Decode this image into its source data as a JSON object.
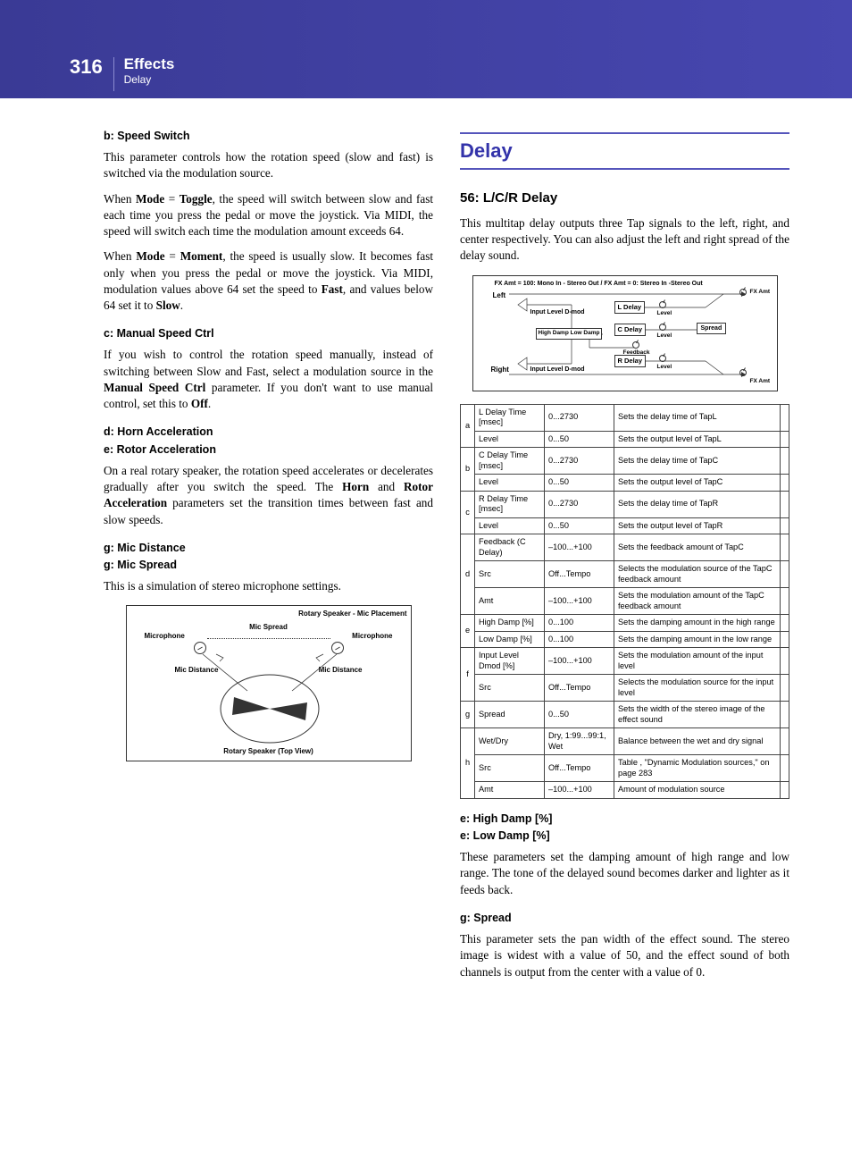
{
  "header": {
    "page_number": "316",
    "title": "Effects",
    "subtitle": "Delay"
  },
  "left_column": {
    "h_b": "b: Speed Switch",
    "p_b1": "This parameter controls how the rotation speed (slow and fast) is switched via the modulation source.",
    "p_b2_pre": "When ",
    "p_b2_mode": "Mode",
    "p_b2_eq": " = ",
    "p_b2_val": "Toggle",
    "p_b2_post": ", the speed will switch between slow and fast each time you press the pedal or move the joystick. Via MIDI, the speed will switch each time the modulation amount exceeds 64.",
    "p_b3_pre": "When ",
    "p_b3_mode": "Mode",
    "p_b3_eq": " = ",
    "p_b3_val": "Moment",
    "p_b3_post1": ", the speed is usually slow. It becomes fast only when you press the pedal or move the joystick. Via MIDI, modulation values above 64 set the speed to ",
    "p_b3_fast": "Fast",
    "p_b3_post2": ", and values below 64 set it to ",
    "p_b3_slow": "Slow",
    "p_b3_end": ".",
    "h_c": "c: Manual Speed Ctrl",
    "p_c_pre": "If you wish to control the rotation speed manually, instead of switching between Slow and Fast, select a modulation source in the ",
    "p_c_b": "Manual Speed Ctrl",
    "p_c_mid": " parameter. If you don't want to use manual control, set this to ",
    "p_c_off": "Off",
    "p_c_end": ".",
    "h_d": "d: Horn Acceleration",
    "h_e": "e: Rotor Acceleration",
    "p_de_pre": "On a real rotary speaker, the rotation speed accelerates or decelerates gradually after you switch the speed. The ",
    "p_de_b1": "Horn",
    "p_de_mid": " and ",
    "p_de_b2": "Rotor Acceleration",
    "p_de_post": " parameters set the transition times between fast and slow speeds.",
    "h_g1": "g: Mic Distance",
    "h_g2": "g: Mic Spread",
    "p_g": "This is a simulation of stereo microphone settings.",
    "diagram1": {
      "title": "Rotary Speaker - Mic Placement",
      "mic_l": "Microphone",
      "mic_r": "Microphone",
      "spread": "Mic Spread",
      "dist_l": "Mic Distance",
      "dist_r": "Mic Distance",
      "bottom": "Rotary Speaker (Top View)"
    }
  },
  "right_column": {
    "section_title": "Delay",
    "sub_title": "56:  L/C/R Delay",
    "intro": "This multitap delay outputs three Tap signals to the left, right, and center respectively. You can also adjust the left and right spread of the delay sound.",
    "diagram2": {
      "top": "FX Amt = 100: Mono In - Stereo Out / FX Amt = 0: Stereo In -Stereo Out",
      "left": "Left",
      "right": "Right",
      "ildmod": "Input Level D-mod",
      "hdld": "High Damp Low Damp",
      "ldelay": "L Delay",
      "cdelay": "C Delay",
      "rdelay": "R Delay",
      "level": "Level",
      "feedback": "Feedback",
      "spread": "Spread",
      "fxamt": "FX Amt"
    },
    "table": [
      {
        "g": "a",
        "rows": [
          {
            "n": "L Delay Time [msec]",
            "r": "0...2730",
            "d": "Sets the delay time of TapL"
          },
          {
            "n": "Level",
            "r": "0...50",
            "d": "Sets the output level of TapL"
          }
        ]
      },
      {
        "g": "b",
        "rows": [
          {
            "n": "C Delay Time [msec]",
            "r": "0...2730",
            "d": "Sets the delay time of TapC"
          },
          {
            "n": "Level",
            "r": "0...50",
            "d": "Sets the output level of TapC"
          }
        ]
      },
      {
        "g": "c",
        "rows": [
          {
            "n": "R Delay Time [msec]",
            "r": "0...2730",
            "d": "Sets the delay time of TapR"
          },
          {
            "n": "Level",
            "r": "0...50",
            "d": "Sets the output level of TapR"
          }
        ]
      },
      {
        "g": "d",
        "rows": [
          {
            "n": "Feedback (C Delay)",
            "r": "–100...+100",
            "d": "Sets the feedback amount of TapC"
          },
          {
            "n": "Src",
            "r": "Off...Tempo",
            "d": "Selects the modulation source of the TapC feedback amount"
          },
          {
            "n": "Amt",
            "r": "–100...+100",
            "d": "Sets the modulation amount of the TapC feedback amount"
          }
        ]
      },
      {
        "g": "e",
        "rows": [
          {
            "n": "High Damp [%]",
            "r": "0...100",
            "d": "Sets the damping amount in the high range"
          },
          {
            "n": "Low Damp [%]",
            "r": "0...100",
            "d": "Sets the damping amount in the low range"
          }
        ]
      },
      {
        "g": "f",
        "rows": [
          {
            "n": "Input Level Dmod [%]",
            "r": "–100...+100",
            "d": "Sets the modulation amount of the input level"
          },
          {
            "n": "Src",
            "r": "Off...Tempo",
            "d": "Selects the modulation source for the input level"
          }
        ]
      },
      {
        "g": "g",
        "rows": [
          {
            "n": "Spread",
            "r": "0...50",
            "d": "Sets the width of the stereo image of the effect sound"
          }
        ]
      },
      {
        "g": "h",
        "rows": [
          {
            "n": "Wet/Dry",
            "r": "Dry, 1:99...99:1, Wet",
            "d": "Balance between the wet and dry signal"
          },
          {
            "n": "Src",
            "r": "Off...Tempo",
            "d": "Table , \"Dynamic Modulation sources,\" on page 283"
          },
          {
            "n": "Amt",
            "r": "–100...+100",
            "d": "Amount of modulation source"
          }
        ]
      }
    ],
    "h_ehd": "e: High Damp [%]",
    "h_eld": "e: Low Damp [%]",
    "p_e": "These parameters set the damping amount of high range and low range. The tone of the delayed sound becomes darker and lighter as it feeds back.",
    "h_gs": "g: Spread",
    "p_gs": "This parameter sets the pan width of the effect sound. The stereo image is widest with a value of 50, and the effect sound of both channels is output from the center with a value of 0."
  }
}
